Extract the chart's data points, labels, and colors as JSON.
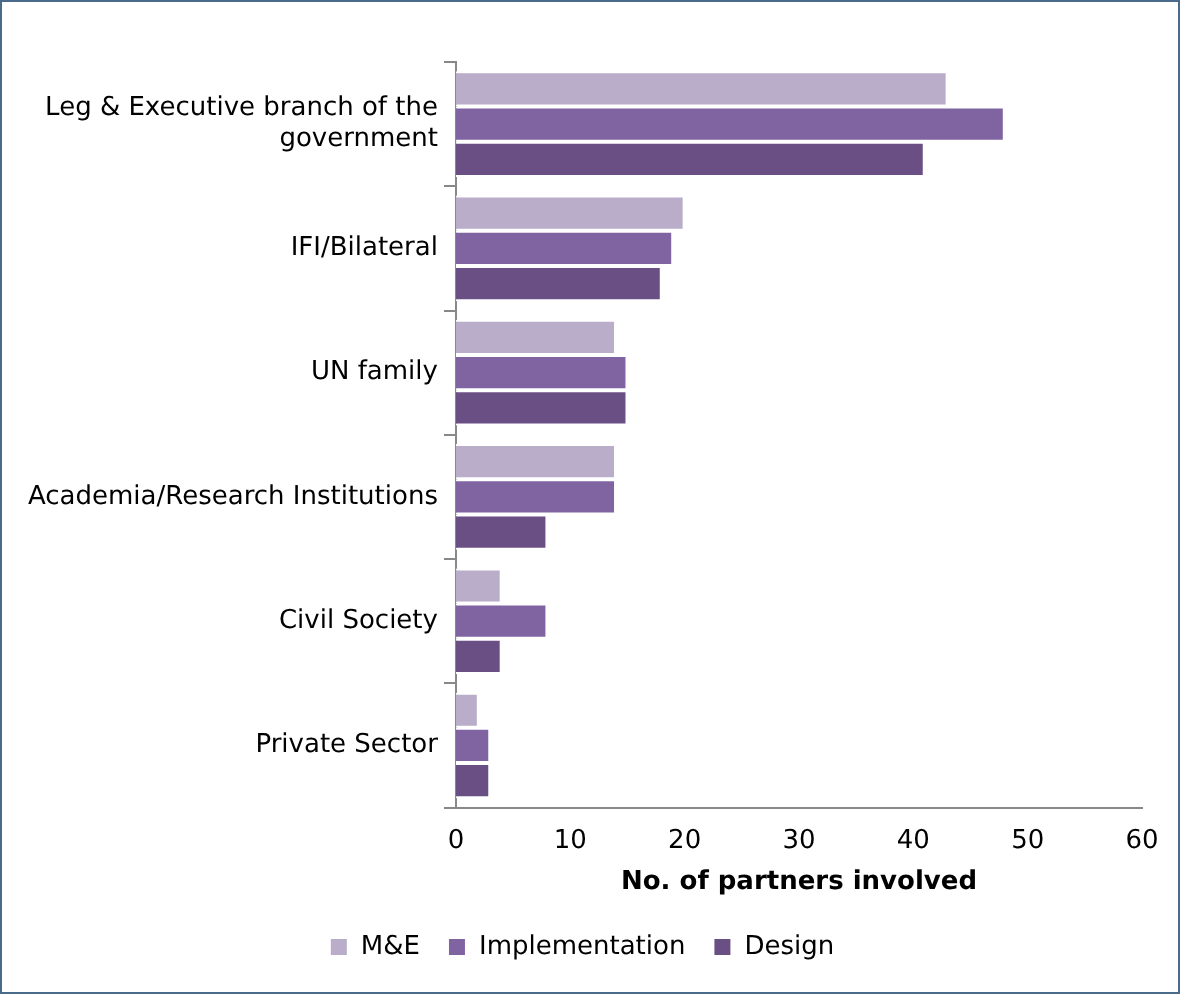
{
  "chart_data": {
    "type": "bar",
    "orientation": "horizontal",
    "xlabel": "No. of partners involved",
    "categories": [
      "Leg & Executive branch of the government",
      "IFI/Bilateral",
      "UN family",
      "Academia/Research Institutions",
      "Civil Society",
      "Private Sector"
    ],
    "series": [
      {
        "name": "M&E",
        "color": "#b9adc9",
        "values": [
          43,
          20,
          14,
          14,
          4,
          2
        ]
      },
      {
        "name": "Implementation",
        "color": "#8064a2",
        "values": [
          48,
          19,
          15,
          14,
          8,
          3
        ]
      },
      {
        "name": "Design",
        "color": "#6a4f85",
        "values": [
          41,
          18,
          15,
          8,
          4,
          3
        ]
      }
    ],
    "xlim": [
      0,
      60
    ],
    "xticks": [
      0,
      10,
      20,
      30,
      40,
      50,
      60
    ],
    "grid": false,
    "legend": "bottom"
  }
}
